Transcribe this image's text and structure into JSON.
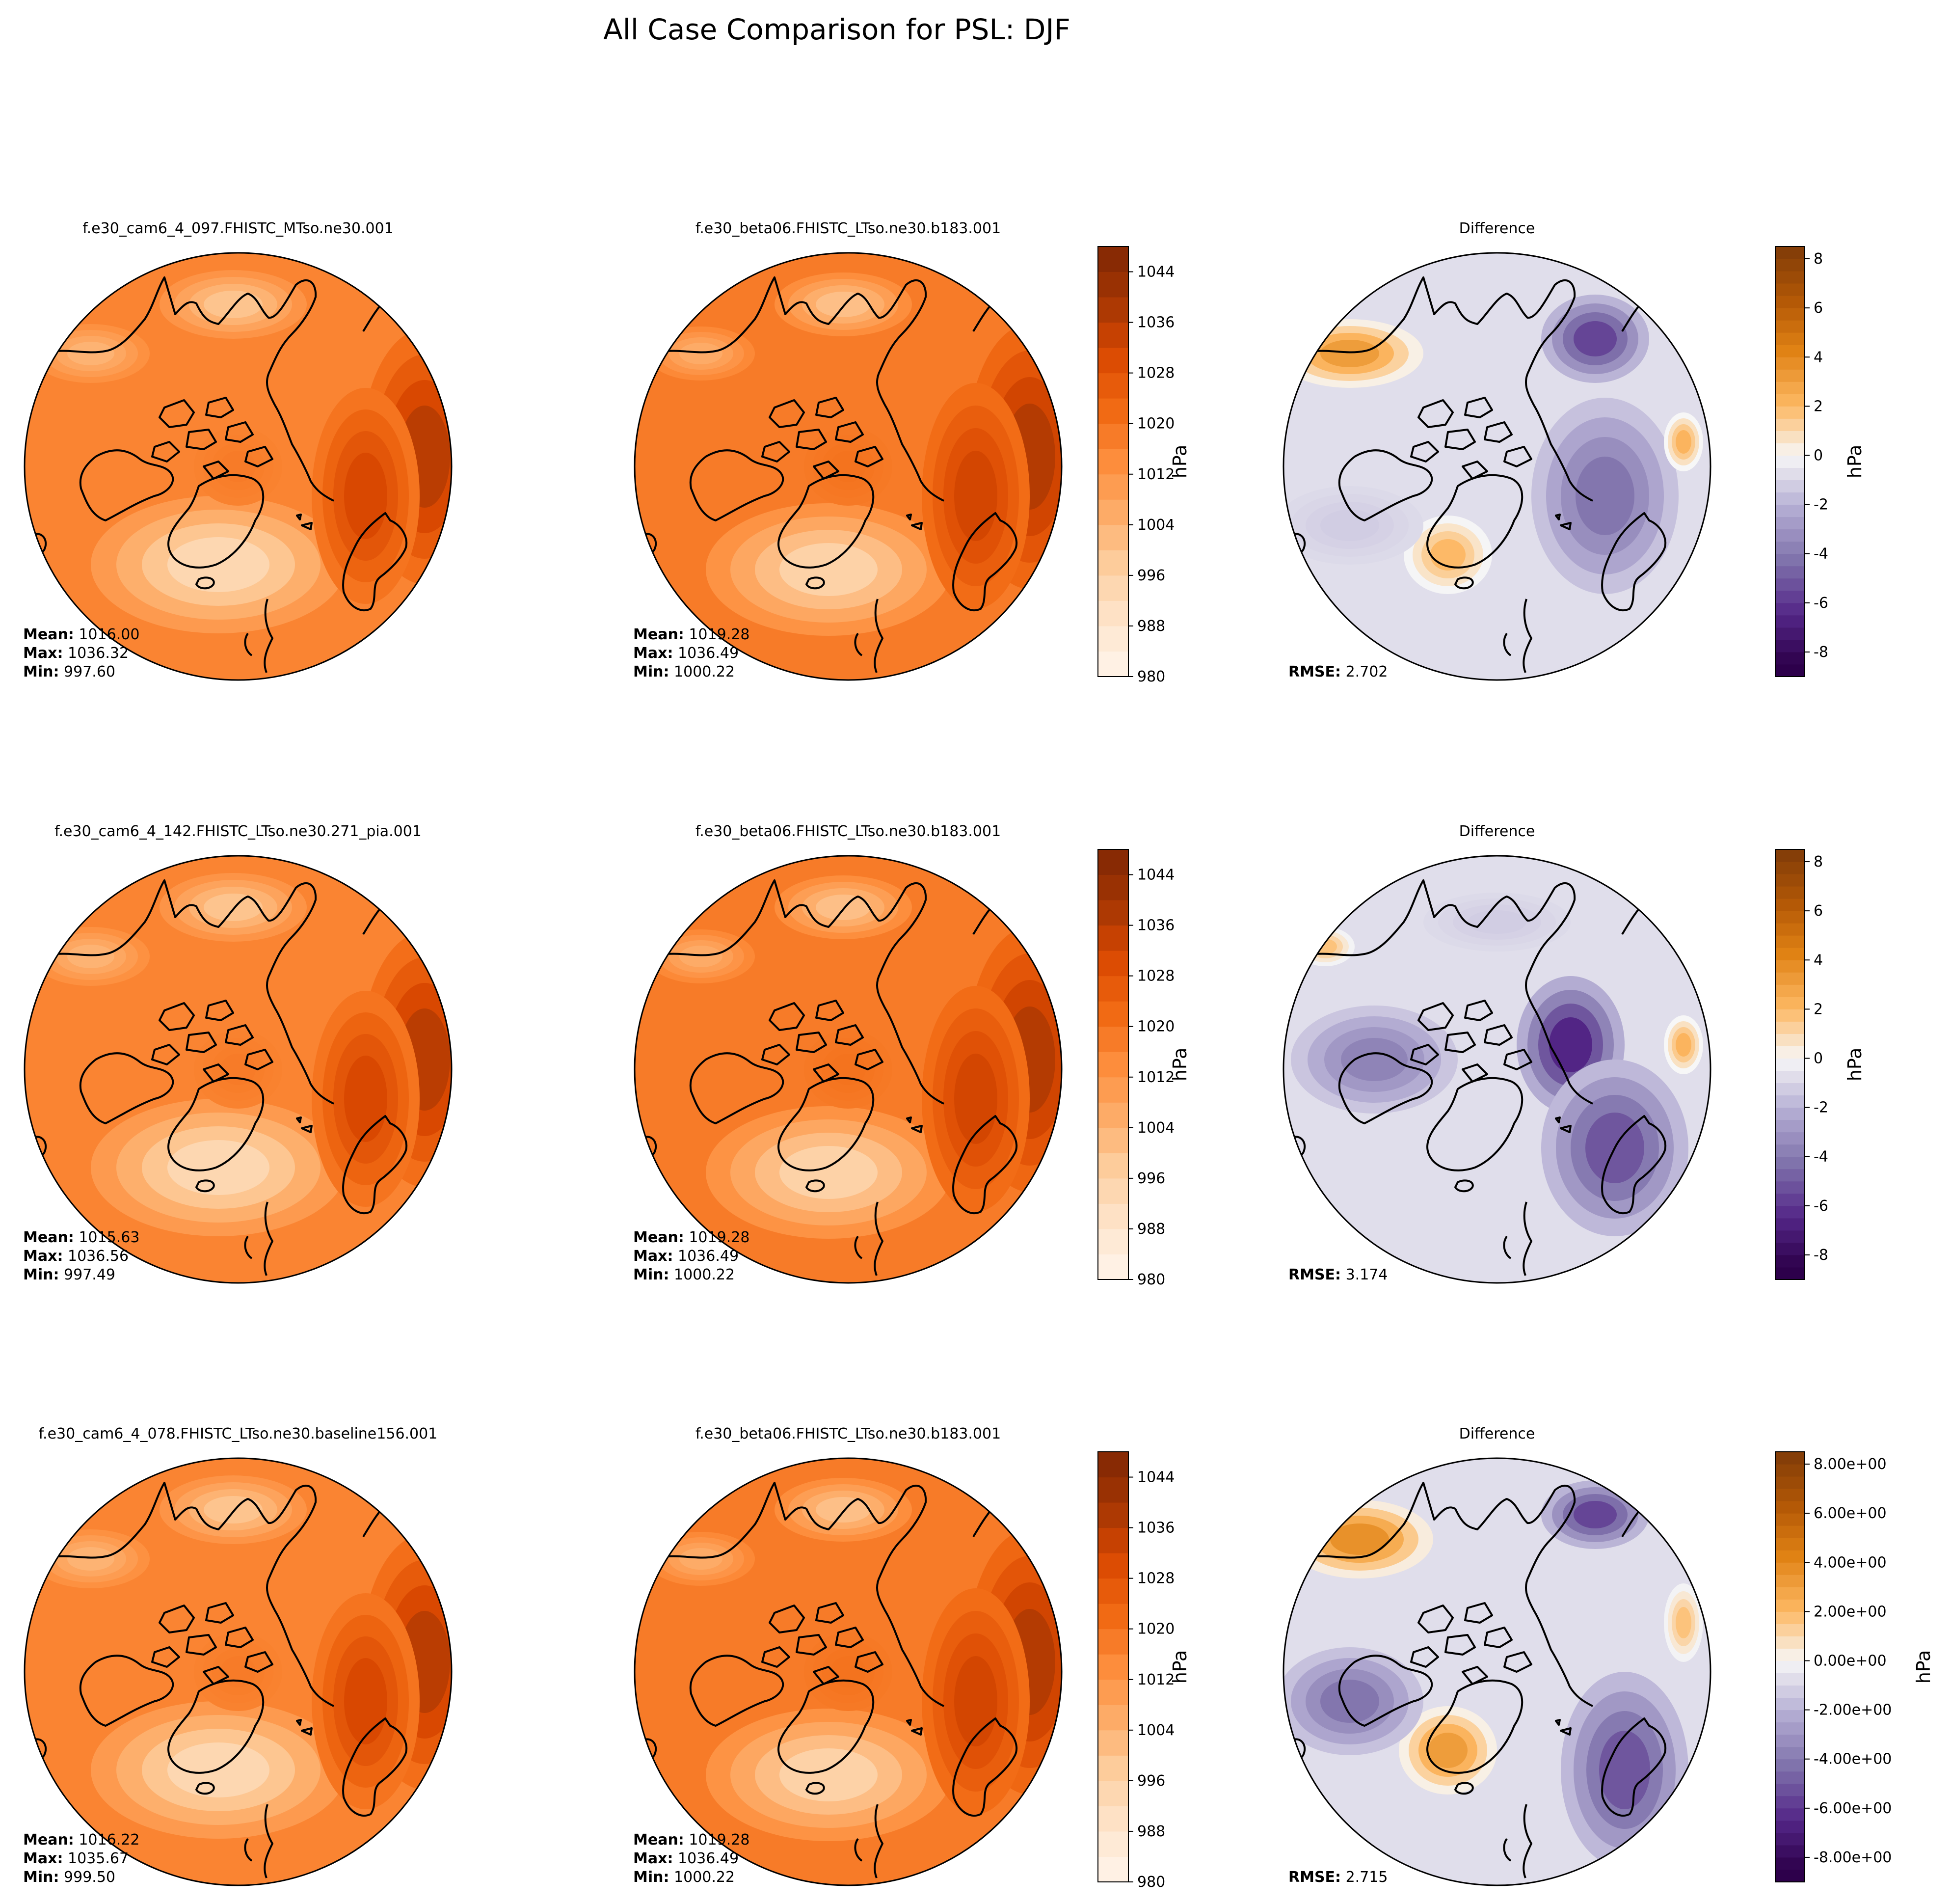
{
  "title": "All Case Comparison for PSL: DJF",
  "psl_colorbar": {
    "unit": "hPa",
    "ticks": [
      "980",
      "988",
      "996",
      "1004",
      "1012",
      "1020",
      "1028",
      "1036",
      "1044"
    ],
    "range": [
      980,
      1048
    ],
    "levels": 17,
    "colormap": "Oranges"
  },
  "diff_colorbar": {
    "unit": "hPa",
    "ticks_plain": [
      "-8",
      "-6",
      "-4",
      "-2",
      "0",
      "2",
      "4",
      "6",
      "8"
    ],
    "ticks_sci": [
      "-8.00e+00",
      "-6.00e+00",
      "-4.00e+00",
      "-2.00e+00",
      "0.00e+00",
      "2.00e+00",
      "4.00e+00",
      "6.00e+00",
      "8.00e+00"
    ],
    "range": [
      -9,
      8.5
    ],
    "colormap": "PuOr_r"
  },
  "stat_labels": {
    "mean": "Mean:",
    "max": "Max:",
    "min": "Min:",
    "rmse": "RMSE:"
  },
  "chart_data": [
    {
      "type": "heatmap",
      "variable": "PSL",
      "season": "DJF",
      "projection": "north-polar-stereographic",
      "rows": [
        {
          "test": {
            "title": "f.e30_cam6_4_097.FHISTC_MTso.ne30.001",
            "mean": "1016.00",
            "max": "1036.32",
            "min": "997.60"
          },
          "reference": {
            "title": "f.e30_beta06.FHISTC_LTso.ne30.b183.001",
            "mean": "1019.28",
            "max": "1036.49",
            "min": "1000.22"
          },
          "difference": {
            "title": "Difference",
            "rmse": "2.702"
          }
        },
        {
          "test": {
            "title": "f.e30_cam6_4_142.FHISTC_LTso.ne30.271_pia.001",
            "mean": "1015.63",
            "max": "1036.56",
            "min": "997.49"
          },
          "reference": {
            "title": "f.e30_beta06.FHISTC_LTso.ne30.b183.001",
            "mean": "1019.28",
            "max": "1036.49",
            "min": "1000.22"
          },
          "difference": {
            "title": "Difference",
            "rmse": "3.174"
          }
        },
        {
          "test": {
            "title": "f.e30_cam6_4_078.FHISTC_LTso.ne30.baseline156.001",
            "mean": "1016.22",
            "max": "1035.67",
            "min": "999.50"
          },
          "reference": {
            "title": "f.e30_beta06.FHISTC_LTso.ne30.b183.001",
            "mean": "1019.28",
            "max": "1036.49",
            "min": "1000.22"
          },
          "difference": {
            "title": "Difference",
            "rmse": "2.715"
          }
        }
      ]
    }
  ]
}
